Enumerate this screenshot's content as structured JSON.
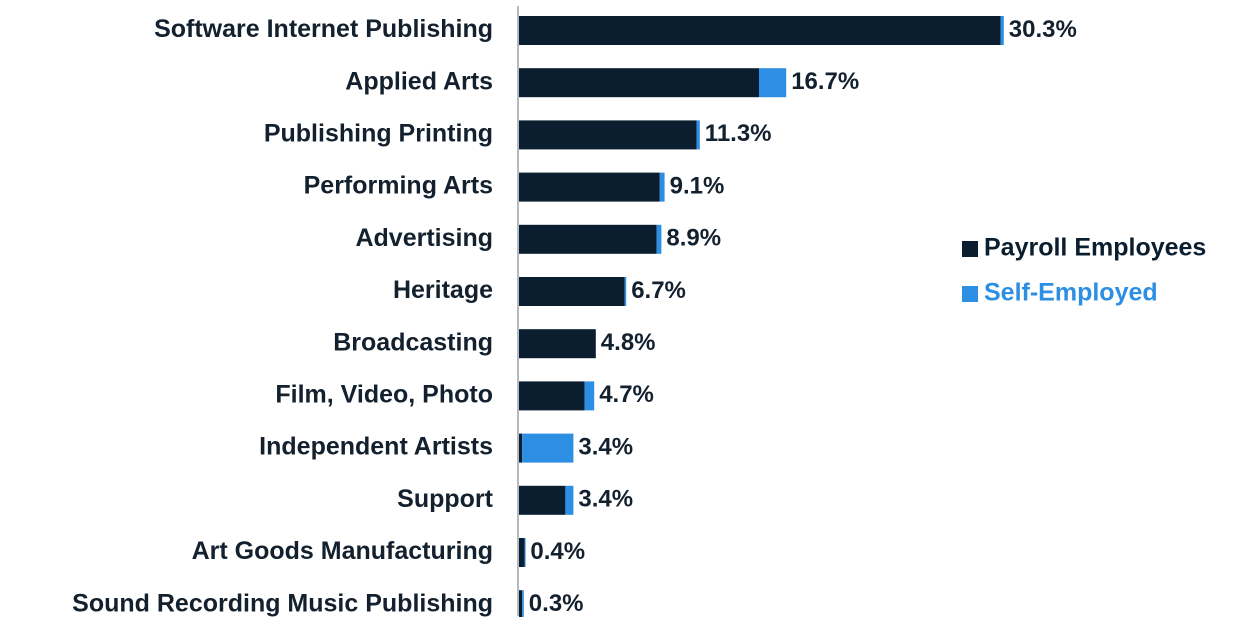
{
  "chart_data": {
    "type": "bar",
    "orientation": "horizontal",
    "stacked": true,
    "categories": [
      "Software Internet Publishing",
      "Applied Arts",
      "Publishing Printing",
      "Performing Arts",
      "Advertising",
      "Heritage",
      "Broadcasting",
      "Film, Video, Photo",
      "Independent Artists",
      "Support",
      "Art Goods Manufacturing",
      "Sound Recording Music Publishing"
    ],
    "series": [
      {
        "name": "Payroll Employees",
        "color": "#0b1e2f",
        "values": [
          30.1,
          15.0,
          11.1,
          8.8,
          8.6,
          6.6,
          4.8,
          4.1,
          0.2,
          2.9,
          0.35,
          0.2
        ]
      },
      {
        "name": "Self-Employed",
        "color": "#2d8fe3",
        "values": [
          0.2,
          1.7,
          0.2,
          0.3,
          0.3,
          0.1,
          0.0,
          0.6,
          3.2,
          0.5,
          0.05,
          0.1
        ]
      }
    ],
    "data_labels": [
      "30.3%",
      "16.7%",
      "11.3%",
      "9.1%",
      "8.9%",
      "6.7%",
      "4.8%",
      "4.7%",
      "3.4%",
      "3.4%",
      "0.4%",
      "0.3%"
    ],
    "xlim": [
      0,
      31
    ],
    "grid": false,
    "legend_position": "right"
  }
}
